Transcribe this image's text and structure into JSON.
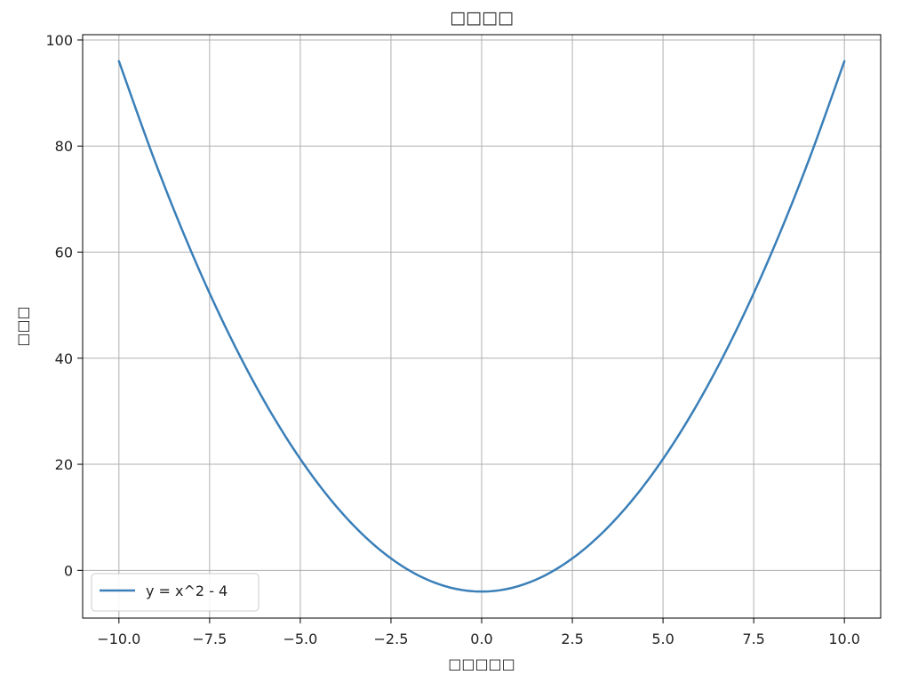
{
  "chart_data": {
    "type": "line",
    "title": "□□□□",
    "xlabel": "□□□□□",
    "ylabel": "□□□",
    "xlim": [
      -11,
      11
    ],
    "ylim": [
      -9,
      101
    ],
    "x_ticks": [
      -10.0,
      -7.5,
      -5.0,
      -2.5,
      0.0,
      2.5,
      5.0,
      7.5,
      10.0
    ],
    "x_tick_labels": [
      "−10.0",
      "−7.5",
      "−5.0",
      "−2.5",
      "0.0",
      "2.5",
      "5.0",
      "7.5",
      "10.0"
    ],
    "y_ticks": [
      0,
      20,
      40,
      60,
      80,
      100
    ],
    "y_tick_labels": [
      "0",
      "20",
      "40",
      "60",
      "80",
      "100"
    ],
    "grid": true,
    "legend_position": "bottom-left",
    "series": [
      {
        "name": "y = x^2 - 4",
        "color": "#3a7fb8",
        "x": [
          -10,
          -9,
          -8,
          -7,
          -6,
          -5,
          -4,
          -3,
          -2,
          -1,
          0,
          1,
          2,
          3,
          4,
          5,
          6,
          7,
          8,
          9,
          10
        ],
        "y": [
          96,
          77,
          60,
          45,
          32,
          21,
          12,
          5,
          0,
          -3,
          -4,
          -3,
          0,
          5,
          12,
          21,
          32,
          45,
          60,
          77,
          96
        ]
      }
    ]
  }
}
